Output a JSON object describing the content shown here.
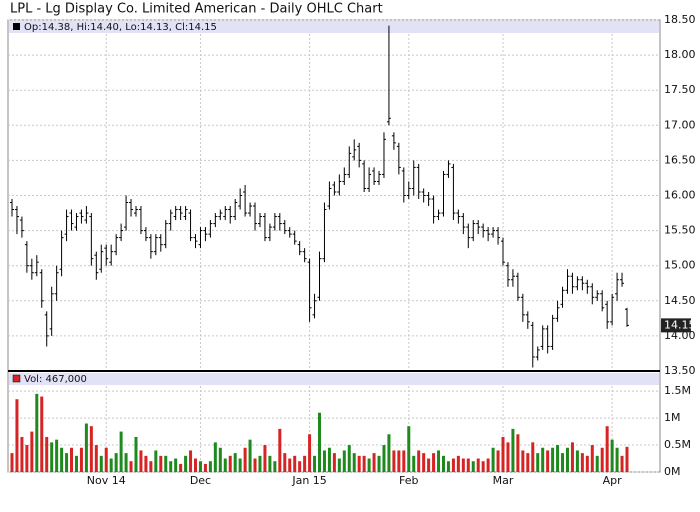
{
  "chart_data": {
    "type": "ohlc",
    "title": "LPL - Lg Display Co. Limited American - Daily OHLC Chart",
    "legend": "Op:14.38, Hi:14.40, Lo:14.13, Cl:14.15",
    "categories": [
      null,
      null,
      null,
      null,
      null,
      null,
      null,
      null,
      null,
      null,
      null,
      null,
      null,
      null,
      null,
      null,
      null,
      null,
      null,
      "Nov 14",
      null,
      null,
      null,
      null,
      null,
      null,
      null,
      null,
      null,
      null,
      null,
      null,
      null,
      null,
      null,
      null,
      null,
      null,
      "Dec",
      null,
      null,
      null,
      null,
      null,
      null,
      null,
      null,
      null,
      null,
      null,
      null,
      null,
      null,
      null,
      null,
      null,
      null,
      null,
      null,
      null,
      "Jan 15",
      null,
      null,
      null,
      null,
      null,
      null,
      null,
      null,
      null,
      null,
      null,
      null,
      null,
      null,
      null,
      null,
      null,
      null,
      null,
      "Feb",
      null,
      null,
      null,
      null,
      null,
      null,
      null,
      null,
      null,
      null,
      null,
      null,
      null,
      null,
      null,
      null,
      null,
      null,
      "Mar",
      null,
      null,
      null,
      null,
      null,
      null,
      null,
      null,
      null,
      null,
      null,
      null,
      null,
      null,
      null,
      null,
      null,
      null,
      null,
      null,
      null,
      "Apr",
      null,
      null,
      null
    ],
    "open": [
      15.9,
      15.8,
      15.65,
      15.3,
      15.0,
      14.9,
      14.9,
      14.3,
      14.1,
      14.6,
      14.95,
      15.45,
      15.75,
      15.55,
      15.75,
      15.65,
      15.7,
      15.15,
      14.95,
      15.25,
      15.05,
      15.2,
      15.4,
      15.55,
      15.9,
      15.75,
      15.8,
      15.5,
      15.4,
      15.2,
      15.4,
      15.3,
      15.6,
      15.7,
      15.8,
      15.7,
      15.75,
      15.4,
      15.3,
      15.5,
      15.45,
      15.6,
      15.7,
      15.7,
      15.8,
      15.7,
      15.85,
      16.05,
      15.75,
      15.85,
      15.6,
      15.7,
      15.4,
      15.55,
      15.7,
      15.6,
      15.5,
      15.45,
      15.3,
      15.2,
      15.05,
      14.3,
      14.55,
      15.1,
      15.85,
      16.15,
      16.05,
      16.2,
      16.3,
      16.55,
      16.7,
      16.45,
      16.1,
      16.35,
      16.2,
      16.3,
      17.05,
      16.85,
      16.7,
      16.35,
      16.0,
      16.1,
      16.4,
      16.05,
      16.0,
      15.95,
      15.7,
      15.75,
      16.3,
      16.4,
      15.75,
      15.7,
      15.55,
      15.4,
      15.6,
      15.55,
      15.5,
      15.45,
      15.5,
      15.35,
      15.0,
      14.8,
      14.85,
      14.55,
      14.3,
      14.15,
      13.7,
      13.85,
      14.1,
      13.85,
      14.25,
      14.45,
      14.65,
      14.85,
      14.7,
      14.8,
      14.75,
      14.7,
      14.55,
      14.6,
      14.45,
      14.2,
      14.6,
      14.8,
      14.38
    ],
    "high": [
      15.95,
      15.85,
      15.7,
      15.35,
      15.1,
      15.15,
      14.95,
      14.35,
      14.7,
      15.0,
      15.5,
      15.8,
      15.8,
      15.75,
      15.8,
      15.85,
      15.75,
      15.2,
      15.3,
      15.3,
      15.3,
      15.45,
      15.6,
      16.0,
      15.95,
      15.85,
      15.85,
      15.55,
      15.45,
      15.45,
      15.45,
      15.65,
      15.8,
      15.85,
      15.85,
      15.85,
      15.8,
      15.45,
      15.55,
      15.55,
      15.65,
      15.75,
      15.8,
      15.85,
      15.85,
      15.95,
      16.1,
      16.15,
      15.9,
      15.9,
      15.75,
      15.75,
      15.6,
      15.75,
      15.75,
      15.65,
      15.55,
      15.5,
      15.35,
      15.25,
      15.1,
      14.6,
      15.2,
      15.9,
      16.2,
      16.2,
      16.3,
      16.4,
      16.7,
      16.8,
      16.75,
      16.5,
      16.4,
      16.4,
      16.35,
      16.9,
      18.42,
      16.9,
      16.75,
      16.4,
      16.2,
      16.5,
      16.45,
      16.1,
      16.05,
      16.0,
      15.8,
      16.35,
      16.5,
      16.45,
      15.8,
      15.75,
      15.6,
      15.65,
      15.65,
      15.6,
      15.55,
      15.55,
      15.55,
      15.4,
      15.05,
      14.95,
      14.9,
      14.6,
      14.35,
      14.2,
      13.85,
      14.15,
      14.15,
      14.3,
      14.5,
      14.7,
      14.95,
      14.9,
      14.85,
      14.85,
      14.8,
      14.75,
      14.65,
      14.65,
      14.5,
      14.6,
      14.9,
      14.9,
      14.4
    ],
    "low": [
      15.7,
      15.45,
      15.4,
      14.9,
      14.8,
      14.85,
      14.4,
      13.85,
      14.0,
      14.5,
      14.85,
      15.35,
      15.5,
      15.5,
      15.6,
      15.6,
      15.0,
      14.8,
      14.9,
      15.0,
      15.0,
      15.15,
      15.35,
      15.5,
      15.7,
      15.7,
      15.45,
      15.35,
      15.1,
      15.15,
      15.2,
      15.25,
      15.5,
      15.65,
      15.65,
      15.65,
      15.35,
      15.25,
      15.25,
      15.35,
      15.4,
      15.55,
      15.65,
      15.65,
      15.6,
      15.65,
      15.8,
      15.7,
      15.7,
      15.5,
      15.55,
      15.35,
      15.35,
      15.5,
      15.5,
      15.45,
      15.4,
      15.3,
      15.15,
      15.05,
      14.2,
      14.25,
      14.5,
      15.05,
      15.8,
      16.0,
      16.0,
      16.15,
      16.25,
      16.5,
      16.4,
      16.05,
      16.05,
      16.15,
      16.15,
      16.25,
      17.0,
      16.65,
      16.3,
      15.9,
      15.95,
      16.0,
      15.95,
      15.9,
      15.85,
      15.6,
      15.65,
      15.7,
      16.25,
      15.65,
      15.6,
      15.45,
      15.25,
      15.35,
      15.45,
      15.4,
      15.35,
      15.4,
      15.3,
      15.0,
      14.7,
      14.7,
      14.5,
      14.2,
      14.1,
      13.55,
      13.65,
      13.8,
      13.75,
      13.8,
      14.2,
      14.4,
      14.6,
      14.6,
      14.65,
      14.65,
      14.6,
      14.45,
      14.5,
      14.35,
      14.1,
      14.15,
      14.5,
      14.7,
      14.13
    ],
    "close": [
      15.8,
      15.7,
      15.5,
      15.0,
      14.9,
      15.05,
      14.5,
      14.0,
      14.6,
      14.9,
      15.4,
      15.7,
      15.6,
      15.7,
      15.7,
      15.75,
      15.1,
      14.9,
      15.2,
      15.1,
      15.2,
      15.4,
      15.5,
      15.9,
      15.8,
      15.8,
      15.5,
      15.4,
      15.2,
      15.4,
      15.3,
      15.6,
      15.75,
      15.8,
      15.75,
      15.8,
      15.4,
      15.35,
      15.5,
      15.45,
      15.6,
      15.7,
      15.75,
      15.8,
      15.7,
      15.9,
      16.0,
      15.75,
      15.85,
      15.6,
      15.7,
      15.4,
      15.55,
      15.7,
      15.6,
      15.5,
      15.45,
      15.35,
      15.2,
      15.1,
      14.4,
      14.5,
      15.1,
      15.8,
      16.1,
      16.05,
      16.2,
      16.3,
      16.6,
      16.65,
      16.5,
      16.1,
      16.3,
      16.2,
      16.3,
      16.8,
      17.1,
      16.75,
      16.4,
      16.0,
      16.1,
      16.4,
      16.05,
      16.0,
      15.95,
      15.7,
      15.75,
      16.3,
      16.45,
      15.75,
      15.7,
      15.55,
      15.4,
      15.6,
      15.55,
      15.5,
      15.45,
      15.5,
      15.4,
      15.05,
      14.8,
      14.85,
      14.55,
      14.3,
      14.2,
      13.7,
      13.8,
      14.1,
      13.85,
      14.25,
      14.4,
      14.65,
      14.85,
      14.7,
      14.8,
      14.75,
      14.7,
      14.55,
      14.6,
      14.4,
      14.2,
      14.55,
      14.8,
      14.75,
      14.15
    ],
    "color": "#000000",
    "last_color": "#222222",
    "legend_band_color": "#e2e2f6",
    "ylim": [
      13.5,
      18.5
    ],
    "yticks": [
      {
        "value": 13.5,
        "label": "13.50"
      },
      {
        "value": 14,
        "label": "14.00"
      },
      {
        "value": 14.5,
        "label": "14.50"
      },
      {
        "value": 15,
        "label": "15.00"
      },
      {
        "value": 15.5,
        "label": "15.50"
      },
      {
        "value": 16,
        "label": "16.00"
      },
      {
        "value": 16.5,
        "label": "16.50"
      },
      {
        "value": 17,
        "label": "17.00"
      },
      {
        "value": 17.5,
        "label": "17.50"
      },
      {
        "value": 18,
        "label": "18.00"
      },
      {
        "value": 18.5,
        "label": "18.50"
      }
    ],
    "grid": true,
    "volume": {
      "legend": "Vol: 467,000",
      "values": [
        350000,
        1350000,
        650000,
        500000,
        750000,
        1450000,
        1400000,
        650000,
        550000,
        600000,
        450000,
        350000,
        450000,
        300000,
        450000,
        900000,
        850000,
        500000,
        300000,
        450000,
        250000,
        350000,
        750000,
        350000,
        200000,
        650000,
        400000,
        300000,
        200000,
        400000,
        300000,
        300000,
        200000,
        250000,
        150000,
        300000,
        400000,
        250000,
        200000,
        150000,
        200000,
        550000,
        450000,
        250000,
        300000,
        350000,
        250000,
        450000,
        600000,
        250000,
        300000,
        500000,
        300000,
        200000,
        800000,
        350000,
        250000,
        300000,
        200000,
        300000,
        700000,
        300000,
        1100000,
        400000,
        450000,
        350000,
        250000,
        400000,
        500000,
        350000,
        300000,
        300000,
        250000,
        350000,
        300000,
        500000,
        700000,
        400000,
        400000,
        400000,
        850000,
        300000,
        400000,
        350000,
        250000,
        350000,
        400000,
        300000,
        200000,
        250000,
        300000,
        250000,
        250000,
        200000,
        250000,
        200000,
        250000,
        450000,
        400000,
        650000,
        550000,
        800000,
        700000,
        400000,
        350000,
        550000,
        350000,
        450000,
        400000,
        450000,
        500000,
        350000,
        450000,
        550000,
        400000,
        350000,
        300000,
        500000,
        300000,
        450000,
        850000,
        600000,
        450000,
        300000,
        467000
      ],
      "up_color": "#1e8a1e",
      "down_color": "#d62424",
      "ylim": [
        0,
        1800000
      ],
      "yticks": [
        {
          "value": 0,
          "label": "0M"
        },
        {
          "value": 500000,
          "label": "0.5M"
        },
        {
          "value": 1000000,
          "label": "1M"
        },
        {
          "value": 1500000,
          "label": "1.5M"
        }
      ]
    }
  }
}
